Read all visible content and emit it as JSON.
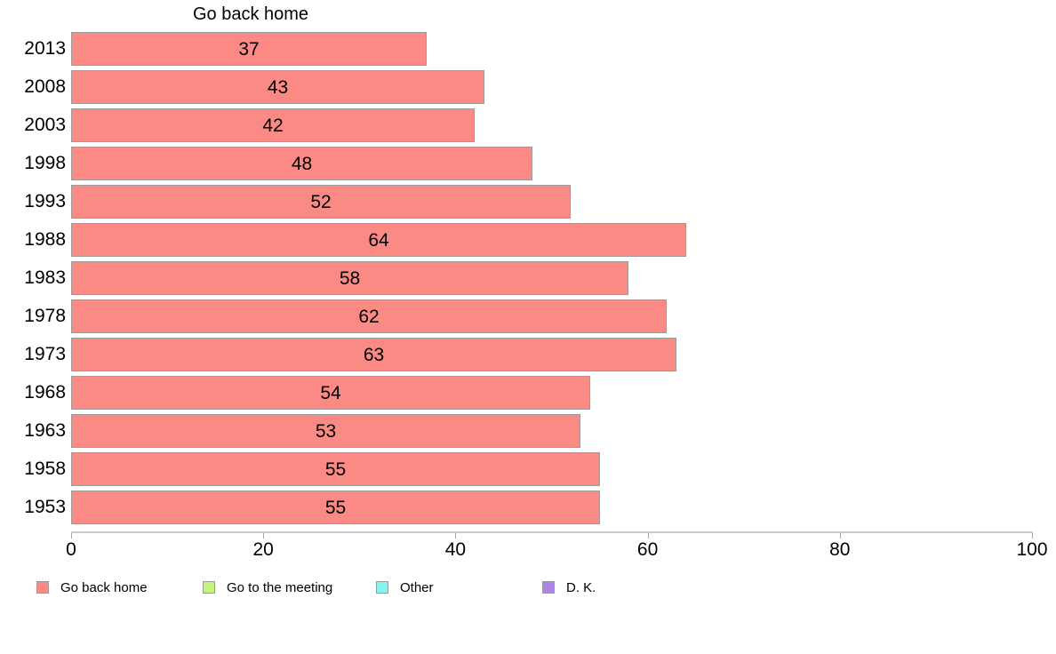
{
  "chart_data": {
    "type": "bar",
    "orientation": "horizontal",
    "title": "Go back home",
    "categories": [
      "2013",
      "2008",
      "2003",
      "1998",
      "1993",
      "1988",
      "1983",
      "1978",
      "1973",
      "1968",
      "1963",
      "1958",
      "1953"
    ],
    "values": [
      37,
      43,
      42,
      48,
      52,
      64,
      58,
      62,
      63,
      54,
      53,
      55,
      55
    ],
    "series_name": "Go back home",
    "xlabel": "",
    "ylabel": "",
    "xlim": [
      0,
      100
    ],
    "x_ticks": [
      0,
      20,
      40,
      60,
      80,
      100
    ],
    "grid": false,
    "value_labels_shown": true,
    "bar_color": "#fc8a84",
    "bar_border_color": "#9b9b9b",
    "legend_position": "bottom",
    "legend": [
      {
        "label": "Go back home",
        "color": "#fc8a84"
      },
      {
        "label": "Go to the meeting",
        "color": "#c3f57d"
      },
      {
        "label": "Other",
        "color": "#85f4ef"
      },
      {
        "label": "D. K.",
        "color": "#ae84e9"
      }
    ]
  }
}
